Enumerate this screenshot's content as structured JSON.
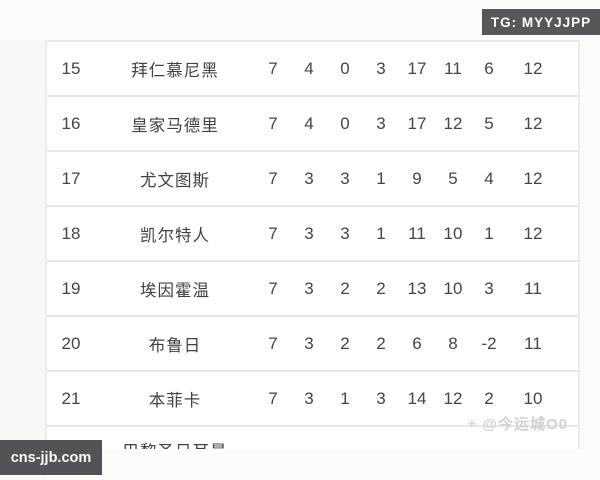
{
  "badges": {
    "tg": "TG: MYYJJPP",
    "site": "cns-jjb.com"
  },
  "watermark": {
    "icon_glyph": "✳",
    "text": "@今运城O0"
  },
  "table": {
    "columns": [
      "rank",
      "team",
      "played",
      "won",
      "drawn",
      "lost",
      "goals_for",
      "goals_against",
      "goal_diff",
      "points"
    ],
    "rows": [
      {
        "rank": "15",
        "team": "拜仁慕尼黑",
        "p": "7",
        "w": "4",
        "d": "0",
        "l": "3",
        "gf": "17",
        "ga": "11",
        "gd": "6",
        "pts": "12"
      },
      {
        "rank": "16",
        "team": "皇家马德里",
        "p": "7",
        "w": "4",
        "d": "0",
        "l": "3",
        "gf": "17",
        "ga": "12",
        "gd": "5",
        "pts": "12"
      },
      {
        "rank": "17",
        "team": "尤文图斯",
        "p": "7",
        "w": "3",
        "d": "3",
        "l": "1",
        "gf": "9",
        "ga": "5",
        "gd": "4",
        "pts": "12"
      },
      {
        "rank": "18",
        "team": "凯尔特人",
        "p": "7",
        "w": "3",
        "d": "3",
        "l": "1",
        "gf": "11",
        "ga": "10",
        "gd": "1",
        "pts": "12"
      },
      {
        "rank": "19",
        "team": "埃因霍温",
        "p": "7",
        "w": "3",
        "d": "2",
        "l": "2",
        "gf": "13",
        "ga": "10",
        "gd": "3",
        "pts": "11"
      },
      {
        "rank": "20",
        "team": "布鲁日",
        "p": "7",
        "w": "3",
        "d": "2",
        "l": "2",
        "gf": "6",
        "ga": "8",
        "gd": "-2",
        "pts": "11"
      },
      {
        "rank": "21",
        "team": "本菲卡",
        "p": "7",
        "w": "3",
        "d": "1",
        "l": "3",
        "gf": "14",
        "ga": "12",
        "gd": "2",
        "pts": "10"
      }
    ],
    "partial_row": {
      "team": "巴黎圣日耳曼"
    }
  },
  "colors": {
    "row_text": "#42454a",
    "separator": "#e9e8e6",
    "badge_bg": "#57575a",
    "badge_text": "#fdfdfd",
    "watermark_text": "#d3d0cd",
    "page_bg": "#fcfcfb"
  }
}
